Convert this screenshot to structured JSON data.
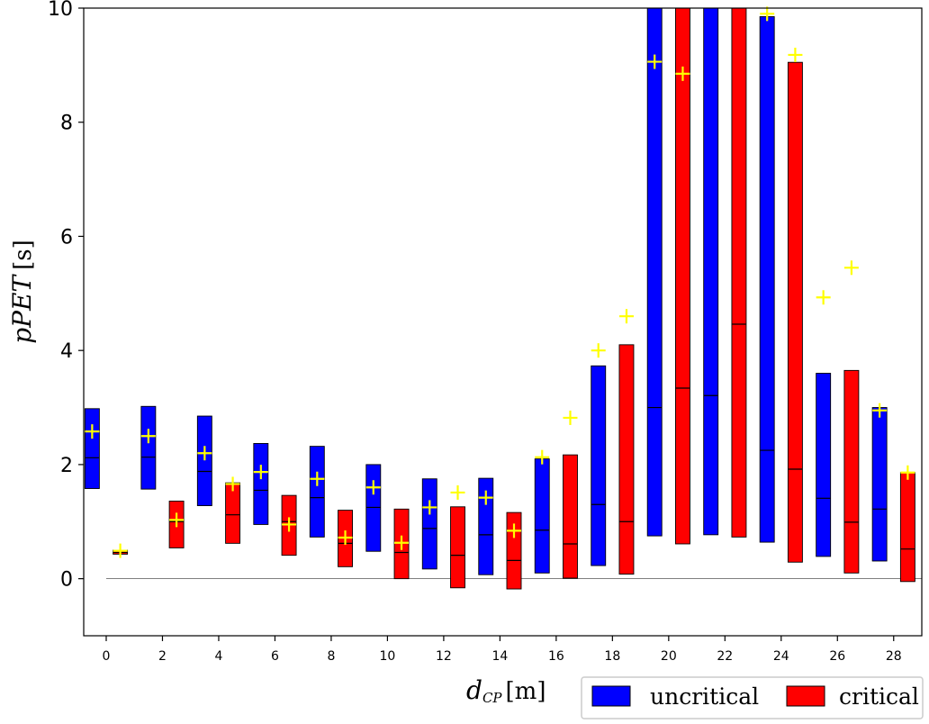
{
  "chart_data": {
    "type": "bar",
    "subtype": "floating-range-bars-with-median-and-mean",
    "xlabel": {
      "symbol": "d",
      "subscript": "CP",
      "unit": "[m]"
    },
    "ylabel": {
      "symbol": "pPET",
      "unit": "[s]"
    },
    "xlim": [
      -0.8,
      29
    ],
    "ylim": [
      -1,
      10
    ],
    "xticks": [
      0,
      2,
      4,
      6,
      8,
      10,
      12,
      14,
      16,
      18,
      20,
      22,
      24,
      26,
      28
    ],
    "yticks": [
      0,
      2,
      4,
      6,
      8,
      10
    ],
    "zero_line": true,
    "grid": false,
    "legend_position": "bottom-right, outside plot",
    "colors": {
      "uncritical": "#0000ff",
      "critical": "#ff0000",
      "mean_marker": "#ffff00"
    },
    "series": [
      {
        "name": "uncritical",
        "color": "#0000ff",
        "bars": [
          {
            "x": -0.5,
            "low": 1.58,
            "high": 2.98,
            "median": 2.12,
            "mean": 2.58
          },
          {
            "x": 1.5,
            "low": 1.57,
            "high": 3.02,
            "median": 2.13,
            "mean": 2.5
          },
          {
            "x": 3.5,
            "low": 1.28,
            "high": 2.85,
            "median": 1.88,
            "mean": 2.2
          },
          {
            "x": 5.5,
            "low": 0.95,
            "high": 2.37,
            "median": 1.55,
            "mean": 1.87
          },
          {
            "x": 7.5,
            "low": 0.73,
            "high": 2.32,
            "median": 1.42,
            "mean": 1.75
          },
          {
            "x": 9.5,
            "low": 0.48,
            "high": 2.0,
            "median": 1.25,
            "mean": 1.6
          },
          {
            "x": 11.5,
            "low": 0.17,
            "high": 1.75,
            "median": 0.88,
            "mean": 1.25
          },
          {
            "x": 13.5,
            "low": 0.07,
            "high": 1.76,
            "median": 0.77,
            "mean": 1.42
          },
          {
            "x": 15.5,
            "low": 0.1,
            "high": 2.1,
            "median": 0.85,
            "mean": 2.13
          },
          {
            "x": 17.5,
            "low": 0.23,
            "high": 3.73,
            "median": 1.3,
            "mean": 4.0
          },
          {
            "x": 19.5,
            "low": 0.75,
            "high": 10.0,
            "median": 3.0,
            "mean": 9.06
          },
          {
            "x": 21.5,
            "low": 0.77,
            "high": 10.0,
            "median": 3.21,
            "mean": null
          },
          {
            "x": 23.5,
            "low": 0.64,
            "high": 9.85,
            "median": 2.25,
            "mean": 9.9
          },
          {
            "x": 25.5,
            "low": 0.39,
            "high": 3.6,
            "median": 1.41,
            "mean": 4.93
          },
          {
            "x": 27.5,
            "low": 0.31,
            "high": 3.0,
            "median": 1.22,
            "mean": 2.95
          }
        ]
      },
      {
        "name": "critical",
        "color": "#ff0000",
        "bars": [
          {
            "x": 0.5,
            "low": 0.43,
            "high": 0.5,
            "median": 0.46,
            "mean": 0.49
          },
          {
            "x": 2.5,
            "low": 0.54,
            "high": 1.36,
            "median": 1.0,
            "mean": 1.03
          },
          {
            "x": 4.5,
            "low": 0.62,
            "high": 1.68,
            "median": 1.12,
            "mean": 1.66
          },
          {
            "x": 6.5,
            "low": 0.41,
            "high": 1.46,
            "median": 1.0,
            "mean": 0.95
          },
          {
            "x": 8.5,
            "low": 0.21,
            "high": 1.2,
            "median": 0.62,
            "mean": 0.72
          },
          {
            "x": 10.5,
            "low": 0.0,
            "high": 1.22,
            "median": 0.46,
            "mean": 0.63
          },
          {
            "x": 12.5,
            "low": -0.16,
            "high": 1.26,
            "median": 0.41,
            "mean": 1.51
          },
          {
            "x": 14.5,
            "low": -0.18,
            "high": 1.16,
            "median": 0.32,
            "mean": 0.84
          },
          {
            "x": 16.5,
            "low": 0.01,
            "high": 2.17,
            "median": 0.61,
            "mean": 2.82
          },
          {
            "x": 18.5,
            "low": 0.08,
            "high": 4.1,
            "median": 1.0,
            "mean": 4.6
          },
          {
            "x": 20.5,
            "low": 0.61,
            "high": 10.0,
            "median": 3.34,
            "mean": 8.85
          },
          {
            "x": 22.5,
            "low": 0.73,
            "high": 10.0,
            "median": 4.46,
            "mean": null
          },
          {
            "x": 24.5,
            "low": 0.29,
            "high": 9.05,
            "median": 1.92,
            "mean": 9.18
          },
          {
            "x": 26.5,
            "low": 0.1,
            "high": 3.65,
            "median": 0.99,
            "mean": 5.45
          },
          {
            "x": 28.5,
            "low": -0.05,
            "high": 1.86,
            "median": 0.52,
            "mean": 1.86
          }
        ]
      }
    ]
  }
}
